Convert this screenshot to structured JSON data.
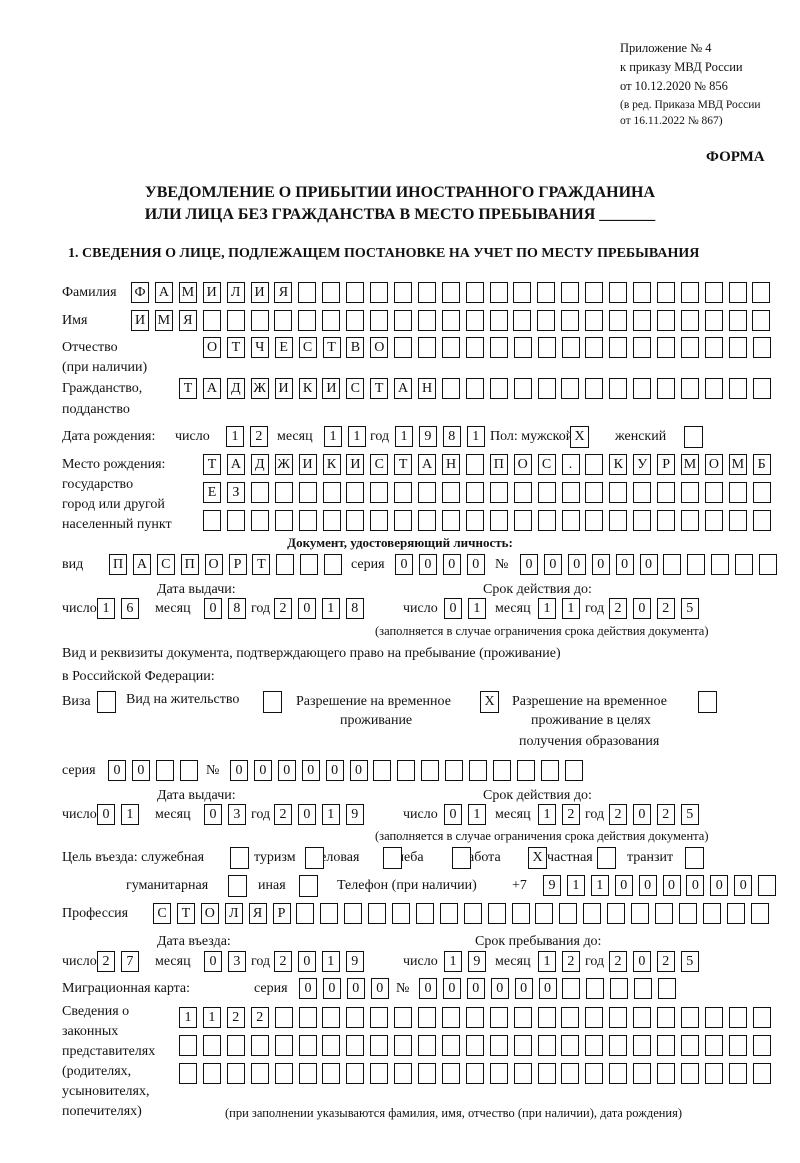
{
  "header": {
    "appendix": [
      "Приложение № 4",
      "к приказу МВД России",
      "от 10.12.2020 № 856",
      "(в ред. Приказа МВД России",
      "от 16.11.2022 № 867)"
    ],
    "forma": "ФОРМА",
    "title_line1": "УВЕДОМЛЕНИЕ О ПРИБЫТИИ ИНОСТРАННОГО ГРАЖДАНИНА",
    "title_line2": "ИЛИ ЛИЦА БЕЗ ГРАЖДАНСТВА В МЕСТО ПРЕБЫВАНИЯ _______",
    "section1": "1. СВЕДЕНИЯ О ЛИЦЕ, ПОДЛЕЖАЩЕМ ПОСТАНОВКЕ НА УЧЕТ ПО МЕСТУ ПРЕБЫВАНИЯ"
  },
  "person": {
    "surname_label": "Фамилия",
    "surname": "ФАМИЛИЯ",
    "name_label": "Имя",
    "name": "ИМЯ",
    "patronymic_label": "Отчество",
    "patronymic_label2": "(при наличии)",
    "patronymic": "ОТЧЕСТВО",
    "citizenship_label": "Гражданство,",
    "citizenship_label2": "подданство",
    "citizenship": "ТАДЖИКИСТАН",
    "birth_label": "Дата рождения:",
    "day_label": "число",
    "month_label": "месяц",
    "year_label": "год",
    "birth_day": "12",
    "birth_month": "11",
    "birth_year": "1981",
    "sex_male_label": "Пол: мужской",
    "sex_male": "X",
    "sex_female_label": "женский",
    "sex_female": "",
    "birthplace_labels": [
      "Место рождения:",
      "государство",
      "город или другой",
      "населенный пункт"
    ],
    "birthplace_rows": [
      "ТАДЖИКИСТАН ПОС. КУРМОМБ",
      "ЕЗ",
      ""
    ]
  },
  "id_doc": {
    "heading": "Документ, удостоверяющий личность:",
    "type_label": "вид",
    "type": "ПАСПОРТ",
    "series_label": "серия",
    "series": "0000",
    "number_label": "№",
    "number": "000000",
    "issue_label": "Дата выдачи:",
    "issue_day": "16",
    "issue_month": "08",
    "issue_year": "2018",
    "valid_label": "Срок действия до:",
    "valid_day": "01",
    "valid_month": "11",
    "valid_year": "2025",
    "note": "(заполняется в случае ограничения срока действия документа)"
  },
  "stay_doc": {
    "heading1": "Вид и реквизиты документа, подтверждающего право на пребывание (проживание)",
    "heading2": "в Российской Федерации:",
    "visa_label": "Виза",
    "visa": "",
    "residence_label": "Вид на жительство",
    "residence": "",
    "temp_label1": "Разрешение на временное",
    "temp_label2": "проживание",
    "temp": "X",
    "edu_label1": "Разрешение на временное",
    "edu_label2": "проживание в целях",
    "edu_label3": "получения образования",
    "edu": "",
    "series_label": "серия",
    "series": "00",
    "number_label": "№",
    "number": "000000",
    "issue_label": "Дата выдачи:",
    "issue_day": "01",
    "issue_month": "03",
    "issue_year": "2019",
    "valid_label": "Срок действия до:",
    "valid_day": "01",
    "valid_month": "12",
    "valid_year": "2025",
    "note": "(заполняется в случае ограничения срока действия документа)"
  },
  "purpose": {
    "label": "Цель въезда: служебная",
    "service": "",
    "tourism_label": "туризм",
    "tourism": "",
    "business_label": "деловая",
    "business": "",
    "study_label": "учеба",
    "study": "",
    "work_label": "работа",
    "work": "X",
    "private_label": "частная",
    "private": "",
    "transit_label": "транзит",
    "transit": "",
    "humanitarian_label": "гуманитарная",
    "humanitarian": "",
    "other_label": "иная",
    "other": "",
    "phone_label": "Телефон (при наличии)",
    "phone_prefix": "+7",
    "phone": "911000000"
  },
  "profession": {
    "label": "Профессия",
    "value": "СТОЛЯР"
  },
  "entry": {
    "entry_label": "Дата въезда:",
    "entry_day": "27",
    "entry_month": "03",
    "entry_year": "2019",
    "stay_label": "Срок пребывания до:",
    "stay_day": "19",
    "stay_month": "12",
    "stay_year": "2025"
  },
  "migration_card": {
    "label": "Миграционная карта:",
    "series_label": "серия",
    "series": "0000",
    "number_label": "№",
    "number": "000000"
  },
  "representatives": {
    "labels": [
      "Сведения о",
      "законных",
      "представителях",
      "(родителях,",
      "усыновителях,",
      "попечителях)"
    ],
    "rows": [
      "1122",
      "",
      ""
    ],
    "note": "(при заполнении указываются фамилия, имя, отчество (при наличии), дата рождения)"
  }
}
